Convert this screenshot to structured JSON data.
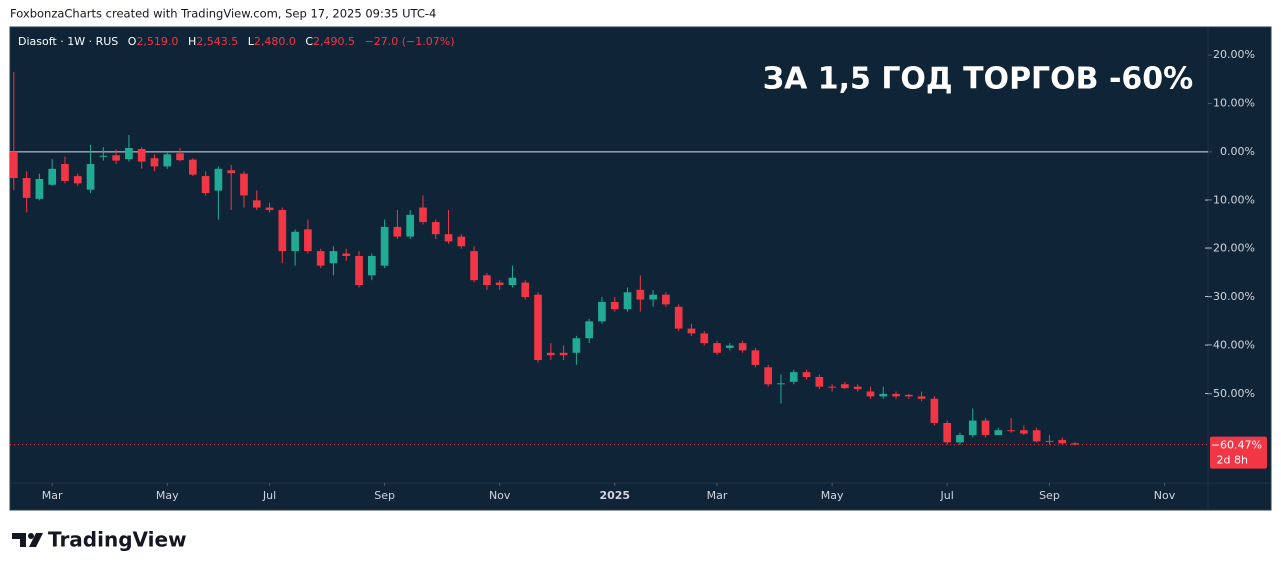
{
  "header": "FoxbonzaCharts created with TradingView.com, Sep 17, 2025 09:35 UTC-4",
  "footer": "TradingView",
  "chart_data": {
    "type": "candlestick",
    "legend": {
      "symbol": "Diasoft · 1W · RUS",
      "open_label": "O",
      "open": "2,519.0",
      "high_label": "H",
      "high": "2,543.5",
      "low_label": "L",
      "low": "2,480.0",
      "close_label": "C",
      "close": "2,490.5",
      "change": "−27.0 (−1.07%)"
    },
    "annotation": "ЗА 1,5 ГОД ТОРГОВ -60%",
    "up_color": "#22ab94",
    "down_color": "#f23645",
    "open": [
      0,
      -5.4,
      -9.7,
      -6.8,
      -2.5,
      -5,
      -7.8,
      -1,
      -0.7,
      -1.5,
      0.6,
      -1.3,
      -3,
      -0.3,
      -1.6,
      -5,
      -8,
      -3.8,
      -4.5,
      -10,
      -11.5,
      -12,
      -20.5,
      -16,
      -20.5,
      -23,
      -21,
      -21.5,
      -25.5,
      -23.5,
      -15.5,
      -17.5,
      -11.5,
      -14.5,
      -17,
      -17.5,
      -20.5,
      -25.5,
      -27,
      -27.5,
      -27,
      -29.5,
      -41.5,
      -41.5,
      -41.5,
      -38.5,
      -35,
      -31,
      -32.5,
      -28.5,
      -30.5,
      -29.5,
      -32,
      -36.5,
      -37.5,
      -39.5,
      -40.5,
      -39.5,
      -41,
      -44.5,
      -48,
      -47.5,
      -45.5,
      -46.5,
      -48.5,
      -48,
      -48.5,
      -49.5,
      -50.5,
      -50,
      -50.2,
      -50.5,
      -51,
      -56,
      -60,
      -58.5,
      -55.5,
      -58.5,
      -57.5,
      -57.5,
      -57.5,
      -59.7,
      -59.5,
      -60.2
    ],
    "high": [
      16.5,
      -4,
      -4.5,
      -1.5,
      -1,
      -4.5,
      1.5,
      1,
      0.5,
      3.5,
      1,
      -0.5,
      0,
      0.8,
      -1.3,
      -4,
      -3,
      -2.7,
      -4,
      -8,
      -10.5,
      -11.5,
      -16,
      -14,
      -20,
      -19.5,
      -20,
      -20.5,
      -21,
      -14,
      -12,
      -12,
      -9,
      -14,
      -12,
      -17,
      -19.5,
      -25,
      -26.5,
      -23.5,
      -26.5,
      -29,
      -39.5,
      -40,
      -38,
      -34.5,
      -30,
      -30,
      -28,
      -25.5,
      -28.5,
      -29,
      -31.5,
      -35.5,
      -37,
      -39,
      -39.5,
      -39,
      -40.5,
      -44,
      -46,
      -45,
      -45,
      -46,
      -48,
      -47.5,
      -48,
      -48.5,
      -48.5,
      -49.5,
      -50,
      -49.5,
      -50.5,
      -55.5,
      -58,
      -53,
      -55,
      -57,
      -55,
      -56.5,
      -57,
      -58.5,
      -59,
      -60
    ],
    "low": [
      -7.9,
      -12.5,
      -10,
      -7,
      -6.5,
      -7,
      -8.5,
      -1.8,
      -2.5,
      -2,
      -3.5,
      -4,
      -3.5,
      -2,
      -5,
      -9,
      -14,
      -12,
      -11.5,
      -12,
      -12.5,
      -23,
      -23.5,
      -21,
      -24,
      -25.5,
      -22.5,
      -28,
      -26.5,
      -24,
      -18,
      -18,
      -15,
      -18,
      -19,
      -20,
      -27,
      -28.5,
      -28.5,
      -28,
      -30.5,
      -43.5,
      -43,
      -43,
      -44,
      -39.5,
      -35.5,
      -33,
      -33,
      -33,
      -32,
      -32,
      -37,
      -38,
      -40,
      -42,
      -41,
      -41.5,
      -44.5,
      -48.5,
      -52,
      -48,
      -47,
      -49,
      -49.5,
      -49,
      -49.5,
      -51,
      -51,
      -51,
      -51,
      -51.5,
      -56.5,
      -60.5,
      -60.5,
      -59,
      -59,
      -58.5,
      -58,
      -58.5,
      -60,
      -60.5,
      -60.5,
      -60.6
    ],
    "close": [
      -5.4,
      -9.5,
      -5.6,
      -3.5,
      -6,
      -6.5,
      -2.5,
      -0.8,
      -1.8,
      0.8,
      -2,
      -3,
      -0.5,
      -1.7,
      -4.7,
      -8.5,
      -3.5,
      -4.4,
      -9,
      -11.5,
      -12,
      -20.5,
      -16.5,
      -20.5,
      -23.5,
      -20.5,
      -21.5,
      -27.5,
      -21.5,
      -15.5,
      -17.5,
      -13,
      -14.5,
      -17,
      -18.5,
      -19.5,
      -26.5,
      -27.5,
      -27.5,
      -26,
      -30,
      -43,
      -42,
      -42,
      -38.5,
      -35,
      -31,
      -32.5,
      -29,
      -30.5,
      -29.5,
      -31.5,
      -36.5,
      -37.5,
      -39.5,
      -41.5,
      -40,
      -41,
      -44,
      -48,
      -47.8,
      -45.5,
      -46.5,
      -48.5,
      -48.7,
      -48.8,
      -49,
      -50.5,
      -50,
      -50.5,
      -50.5,
      -51,
      -56,
      -60,
      -58.5,
      -55.5,
      -58.5,
      -57.5,
      -57.7,
      -58.2,
      -59.8,
      -59.9,
      -60.2,
      -60.47
    ],
    "xlim": [
      -0.3,
      93.4
    ],
    "xticks": [
      {
        "value": 3,
        "label": "Mar"
      },
      {
        "value": 12,
        "label": "May"
      },
      {
        "value": 20,
        "label": "Jul"
      },
      {
        "value": 29,
        "label": "Sep"
      },
      {
        "value": 38,
        "label": "Nov"
      },
      {
        "value": 47,
        "label": "2025"
      },
      {
        "value": 55,
        "label": "Mar"
      },
      {
        "value": 64,
        "label": "May"
      },
      {
        "value": 73,
        "label": "Jul"
      },
      {
        "value": 81,
        "label": "Sep"
      },
      {
        "value": 90,
        "label": "Nov"
      }
    ],
    "ylim": [
      -68.4,
      25.8
    ],
    "yticks": [
      {
        "value": 20,
        "label": "20.00%"
      },
      {
        "value": 10,
        "label": "10.00%"
      },
      {
        "value": 0,
        "label": "0.00%"
      },
      {
        "value": -10,
        "label": "−10.00%"
      },
      {
        "value": -20,
        "label": "−20.00%"
      },
      {
        "value": -30,
        "label": "−30.00%"
      },
      {
        "value": -40,
        "label": "−40.00%"
      },
      {
        "value": -50,
        "label": "−50.00%"
      }
    ],
    "last_price_label": "−60.47%",
    "countdown": "2d 8h"
  }
}
